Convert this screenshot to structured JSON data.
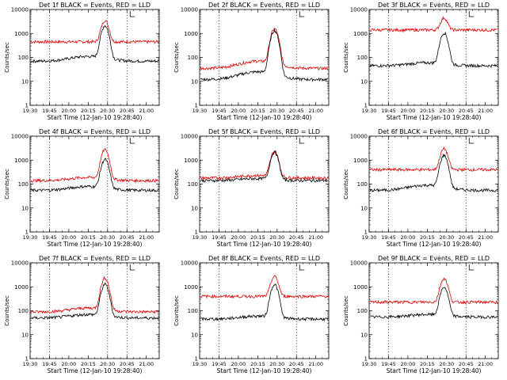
{
  "chart_data": {
    "type": "line",
    "y_log_scale": true,
    "ylim": [
      1,
      10000
    ],
    "y_ticks": [
      1,
      10,
      100,
      1000,
      10000
    ],
    "y_tick_labels": [
      "1",
      "10",
      "100",
      "1000",
      "10000"
    ],
    "xlabel": "Start Time (12-Jan-10 19:28:40)",
    "ylabel": "Counts/sec",
    "x_start": "19:30",
    "x_end": "21:10",
    "x_tick_labels": [
      "19:30",
      "19:45",
      "20:00",
      "20:15",
      "20:30",
      "20:45",
      "21:00"
    ],
    "x_tick_values": [
      "19:30",
      "19:45",
      "20:00",
      "20:15",
      "20:30",
      "20:45",
      "21:00"
    ],
    "colors": {
      "events": "#000000",
      "lld": "#e00000"
    },
    "panels": [
      {
        "title": "Det 1f BLACK = Events, RED = LLD",
        "dotted_lines": [
          "19:45",
          "20:30",
          "20:45"
        ],
        "black": {
          "base": 70,
          "hump": 110,
          "peak": 2000
        },
        "red": {
          "base": 450,
          "hump": 450,
          "peak": 3000
        }
      },
      {
        "title": "Det 2f BLACK = Events, RED = LLD",
        "dotted_lines": [
          "19:45",
          "20:45"
        ],
        "black": {
          "base": 12,
          "hump": 25,
          "peak": 1300
        },
        "red": {
          "base": 35,
          "hump": 70,
          "peak": 1500
        }
      },
      {
        "title": "Det 3f BLACK = Events, RED = LLD",
        "dotted_lines": [
          "19:45",
          "20:45"
        ],
        "black": {
          "base": 45,
          "hump": 60,
          "peak": 1000
        },
        "red": {
          "base": 1400,
          "hump": 1400,
          "peak": 3000
        }
      },
      {
        "title": "Det 4f BLACK = Events, RED = LLD",
        "dotted_lines": [
          "19:45",
          "20:30",
          "20:45"
        ],
        "black": {
          "base": 55,
          "hump": 80,
          "peak": 1000
        },
        "red": {
          "base": 140,
          "hump": 190,
          "peak": 2600
        }
      },
      {
        "title": "Det 5f BLACK = Events, RED = LLD",
        "dotted_lines": [
          "19:45",
          "20:45"
        ],
        "black": {
          "base": 140,
          "hump": 170,
          "peak": 2000
        },
        "red": {
          "base": 180,
          "hump": 230,
          "peak": 2100
        }
      },
      {
        "title": "Det 6f BLACK = Events, RED = LLD",
        "dotted_lines": [
          "19:45",
          "20:45"
        ],
        "black": {
          "base": 55,
          "hump": 90,
          "peak": 1500
        },
        "red": {
          "base": 400,
          "hump": 400,
          "peak": 2600
        }
      },
      {
        "title": "Det 7f BLACK = Events, RED = LLD",
        "dotted_lines": [
          "19:45",
          "20:30",
          "20:45"
        ],
        "black": {
          "base": 50,
          "hump": 70,
          "peak": 1200
        },
        "red": {
          "base": 90,
          "hump": 130,
          "peak": 2200
        }
      },
      {
        "title": "Det 8f BLACK = Events, RED = LLD",
        "dotted_lines": [
          "19:45",
          "20:45"
        ],
        "black": {
          "base": 45,
          "hump": 60,
          "peak": 1200
        },
        "red": {
          "base": 400,
          "hump": 400,
          "peak": 2300
        }
      },
      {
        "title": "Det 9f BLACK = Events, RED = LLD",
        "dotted_lines": [
          "19:45",
          "20:45"
        ],
        "black": {
          "base": 55,
          "hump": 70,
          "peak": 900
        },
        "red": {
          "base": 230,
          "hump": 230,
          "peak": 2000
        }
      }
    ]
  }
}
